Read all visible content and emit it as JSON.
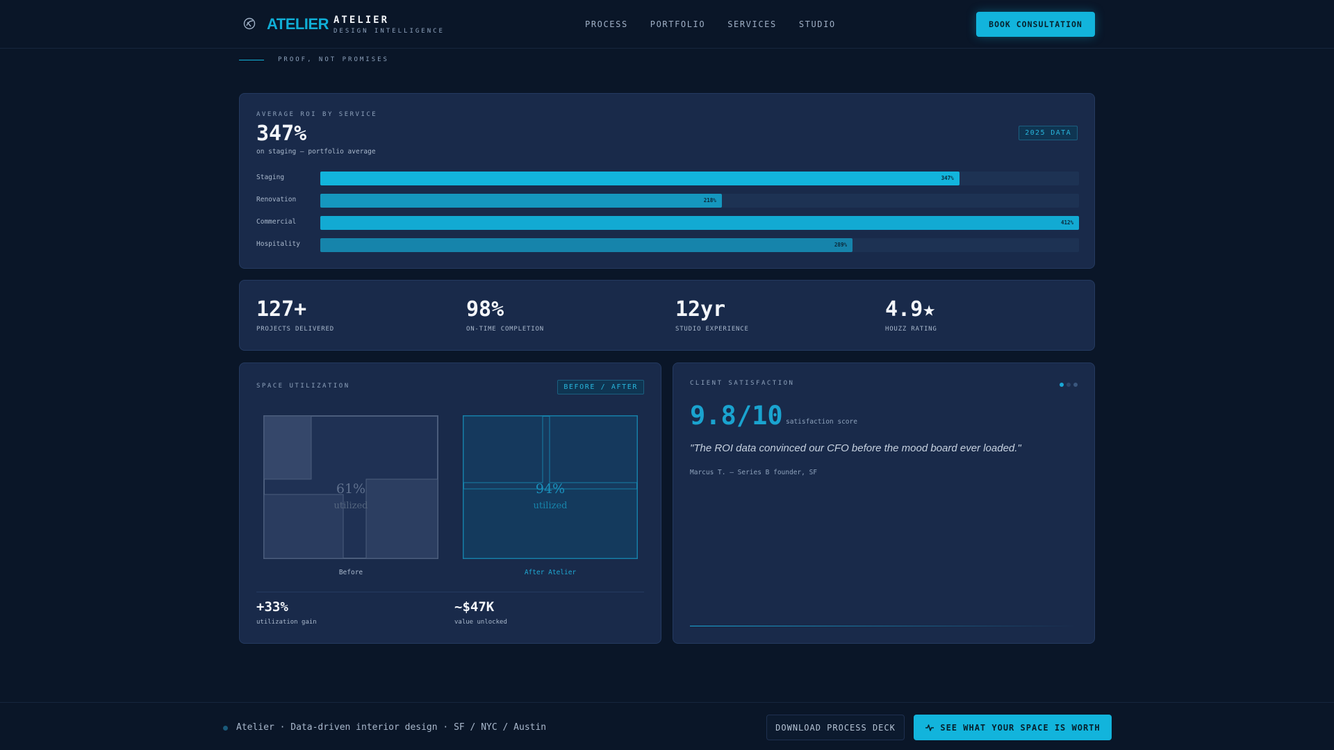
{
  "header": {
    "logo_wordmark": "ATELIER",
    "brand_name": "ATELIER",
    "brand_tagline": "DESIGN INTELLIGENCE",
    "nav": [
      "PROCESS",
      "PORTFOLIO",
      "SERVICES",
      "STUDIO"
    ],
    "cta": "BOOK CONSULTATION"
  },
  "eyebrow": "PROOF, NOT PROMISES",
  "roi": {
    "label": "AVERAGE ROI BY SERVICE",
    "headline": "347%",
    "subline": "on staging — portfolio average",
    "badge": "2025 DATA",
    "bars": [
      {
        "label": "Staging",
        "value_text": "347%",
        "value": 347,
        "color": "#12b4dc"
      },
      {
        "label": "Renovation",
        "value_text": "218%",
        "value": 218,
        "color": "#1597bf"
      },
      {
        "label": "Commercial",
        "value_text": "412%",
        "value": 412,
        "color": "#12aad3"
      },
      {
        "label": "Hospitality",
        "value_text": "289%",
        "value": 289,
        "color": "#1684ab"
      }
    ],
    "max": 412
  },
  "stats": [
    {
      "value": "127+",
      "label": "PROJECTS DELIVERED"
    },
    {
      "value": "98%",
      "label": "ON-TIME COMPLETION"
    },
    {
      "value": "12yr",
      "label": "STUDIO EXPERIENCE"
    },
    {
      "value": "4.9★",
      "label": "HOUZZ RATING"
    }
  ],
  "space": {
    "label": "SPACE UTILIZATION",
    "badge": "BEFORE / AFTER",
    "before_pct": "61%",
    "before_word": "utilized",
    "before_caption": "Before",
    "after_pct": "94%",
    "after_word": "utilized",
    "after_caption": "After Atelier",
    "gain_value": "+33%",
    "gain_label": "utilization gain",
    "value_value": "~$47K",
    "value_label": "value unlocked"
  },
  "satisfaction": {
    "label": "CLIENT SATISFACTION",
    "score": "9.8/10",
    "score_label": "satisfaction score",
    "quote": "\"The ROI data convinced our CFO before the mood board ever loaded.\"",
    "attribution": "Marcus T. — Series B founder, SF"
  },
  "footer": {
    "text": "Atelier · Data-driven interior design · SF / NYC / Austin",
    "secondary_cta": "DOWNLOAD PROCESS DECK",
    "primary_cta": "SEE WHAT YOUR SPACE IS WORTH",
    "primary_icon": "pulse-icon"
  },
  "colors": {
    "accent": "#12b4dc",
    "background": "#0a1628",
    "card": "#192a4a"
  }
}
